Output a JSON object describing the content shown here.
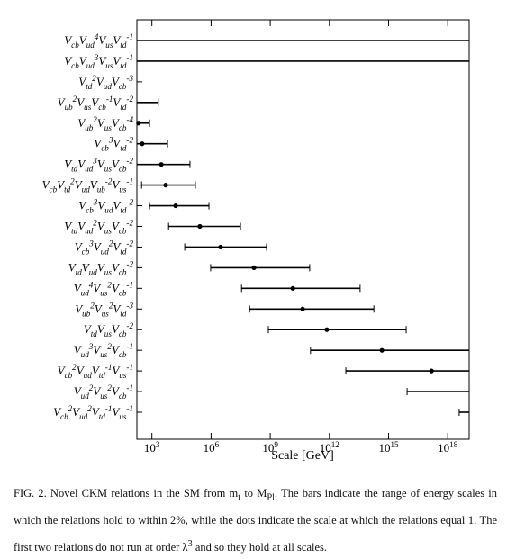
{
  "chart_data": {
    "type": "range",
    "x_label": "Scale [GeV]",
    "log_x": true,
    "xlim": [
      173,
      1.22e+19
    ],
    "xticks": [
      {
        "value": 1000,
        "label": "10^{3}"
      },
      {
        "value": 1000000,
        "label": "10^{6}"
      },
      {
        "value": 1000000000,
        "label": "10^{9}"
      },
      {
        "value": 1000000000000,
        "label": "10^{12}"
      },
      {
        "value": 1000000000000000,
        "label": "10^{15}"
      },
      {
        "value": 1000000000000000000,
        "label": "10^{18}"
      }
    ],
    "color": "#000000",
    "categories": [
      "V_{cb}V_{ud}^{4}V_{us}V_{td}^{-1}",
      "V_{cb}V_{ud}^{3}V_{us}V_{td}^{-1}",
      "V_{td}^{2}V_{ud}V_{cb}^{-3}",
      "V_{ub}^{2}V_{us}V_{cb}^{-1}V_{td}^{-2}",
      "V_{ub}^{2}V_{us}V_{cb}^{-4}",
      "V_{cb}^{3}V_{td}^{-2}",
      "V_{td}V_{ud}^{3}V_{us}V_{cb}^{-2}",
      "V_{cb}V_{td}^{2}V_{ud}V_{ub}^{-2}V_{us}^{-1}",
      "V_{cb}^{3}V_{ud}V_{td}^{-2}",
      "V_{td}V_{ud}^{2}V_{us}V_{cb}^{-2}",
      "V_{cb}^{3}V_{ud}^{2}V_{td}^{-2}",
      "V_{td}V_{ud}V_{us}V_{cb}^{-2}",
      "V_{ud}^{4}V_{us}^{2}V_{cb}^{-1}",
      "V_{ub}^{2}V_{us}^{2}V_{td}^{-3}",
      "V_{td}V_{us}V_{cb}^{-2}",
      "V_{ud}^{3}V_{us}^{2}V_{cb}^{-1}",
      "V_{cb}^{2}V_{ud}V_{td}^{-1}V_{us}^{-1}",
      "V_{ud}^{2}V_{us}^{2}V_{cb}^{-1}",
      "V_{cb}^{2}V_{ud}^{2}V_{td}^{-1}V_{us}^{-1}"
    ],
    "low": [
      173,
      173,
      null,
      173,
      173,
      173,
      173,
      300,
      760,
      7000,
      46000,
      950000,
      35000000,
      90000000,
      800000000,
      110000000000,
      6800000000000,
      8700000000000000,
      3800000000000000000
    ],
    "high": [
      1.22e+19,
      1.22e+19,
      null,
      2100,
      760,
      6200,
      85000,
      160000,
      780000,
      31000000,
      650000000,
      100000000000,
      36000000000000,
      180000000000000,
      7800000000000000,
      1.22e+19,
      1.22e+19,
      1.22e+19,
      1.22e+19
    ],
    "values": [
      null,
      null,
      null,
      null,
      210,
      320,
      3000,
      5000,
      16000,
      270000,
      3000000,
      150000000,
      14000000000,
      44000000000,
      740000000000,
      460000000000000,
      150000000000000000,
      null,
      null
    ]
  },
  "caption": "FIG. 2. Novel CKM relations in the SM from m_{t} to M_{Pl}. The bars indicate the range of energy scales in which the relations hold to within 2%, while the dots indicate the scale at which the relations equal 1. The first two relations do not run at order λ^{3} and so they hold at all scales."
}
